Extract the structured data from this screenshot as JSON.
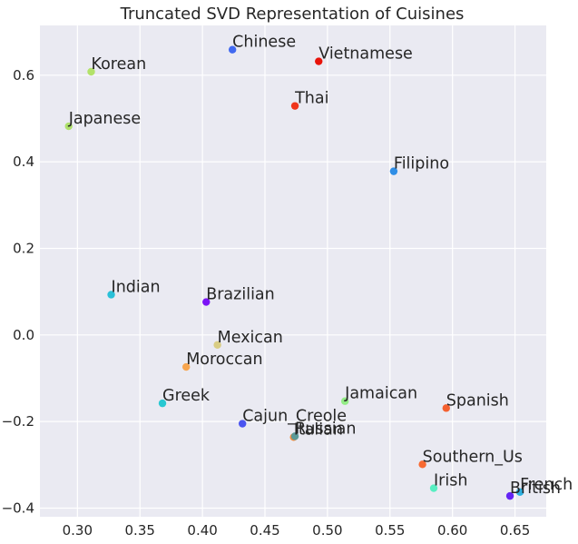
{
  "chart_data": {
    "type": "scatter",
    "title": "Truncated SVD Representation of Cuisines",
    "xlabel": "",
    "ylabel": "",
    "xlim": [
      0.27,
      0.675
    ],
    "ylim": [
      -0.42,
      0.715
    ],
    "grid": true,
    "x_ticks": [
      0.3,
      0.35,
      0.4,
      0.45,
      0.5,
      0.55,
      0.6,
      0.65
    ],
    "x_tick_labels": [
      "0.30",
      "0.35",
      "0.40",
      "0.45",
      "0.50",
      "0.55",
      "0.60",
      "0.65"
    ],
    "y_ticks": [
      -0.4,
      -0.2,
      0.0,
      0.2,
      0.4,
      0.6
    ],
    "y_tick_labels": [
      "−0.4",
      "−0.2",
      "0.0",
      "0.2",
      "0.4",
      "0.6"
    ],
    "points": [
      {
        "label": "Chinese",
        "x": 0.424,
        "y": 0.659,
        "color": "#4169f0"
      },
      {
        "label": "Vietnamese",
        "x": 0.493,
        "y": 0.632,
        "color": "#e8130a"
      },
      {
        "label": "Korean",
        "x": 0.311,
        "y": 0.608,
        "color": "#b3e26a"
      },
      {
        "label": "Thai",
        "x": 0.474,
        "y": 0.529,
        "color": "#f0361c"
      },
      {
        "label": "Japanese",
        "x": 0.293,
        "y": 0.482,
        "color": "#aee06c"
      },
      {
        "label": "Filipino",
        "x": 0.553,
        "y": 0.378,
        "color": "#2f8ee6"
      },
      {
        "label": "Indian",
        "x": 0.327,
        "y": 0.093,
        "color": "#2ac0d8"
      },
      {
        "label": "Brazilian",
        "x": 0.403,
        "y": 0.076,
        "color": "#7c14f6"
      },
      {
        "label": "Mexican",
        "x": 0.412,
        "y": -0.023,
        "color": "#d9cd84"
      },
      {
        "label": "Moroccan",
        "x": 0.387,
        "y": -0.074,
        "color": "#f7a54e"
      },
      {
        "label": "Greek",
        "x": 0.368,
        "y": -0.158,
        "color": "#28c8d2"
      },
      {
        "label": "Jamaican",
        "x": 0.514,
        "y": -0.153,
        "color": "#93ec86"
      },
      {
        "label": "Spanish",
        "x": 0.595,
        "y": -0.169,
        "color": "#f46030"
      },
      {
        "label": "Cajun_Creole",
        "x": 0.432,
        "y": -0.205,
        "color": "#4a54f0"
      },
      {
        "label": "Italian",
        "x": 0.473,
        "y": -0.236,
        "color": "#f08a3a"
      },
      {
        "label": "Russian",
        "x": 0.474,
        "y": -0.234,
        "color": "#5b9a98"
      },
      {
        "label": "Southern_Us",
        "x": 0.576,
        "y": -0.299,
        "color": "#f86a32"
      },
      {
        "label": "Irish",
        "x": 0.585,
        "y": -0.354,
        "color": "#58eec2"
      },
      {
        "label": "French",
        "x": 0.654,
        "y": -0.363,
        "color": "#2db0e0"
      },
      {
        "label": "British",
        "x": 0.646,
        "y": -0.372,
        "color": "#6424f4"
      }
    ]
  }
}
